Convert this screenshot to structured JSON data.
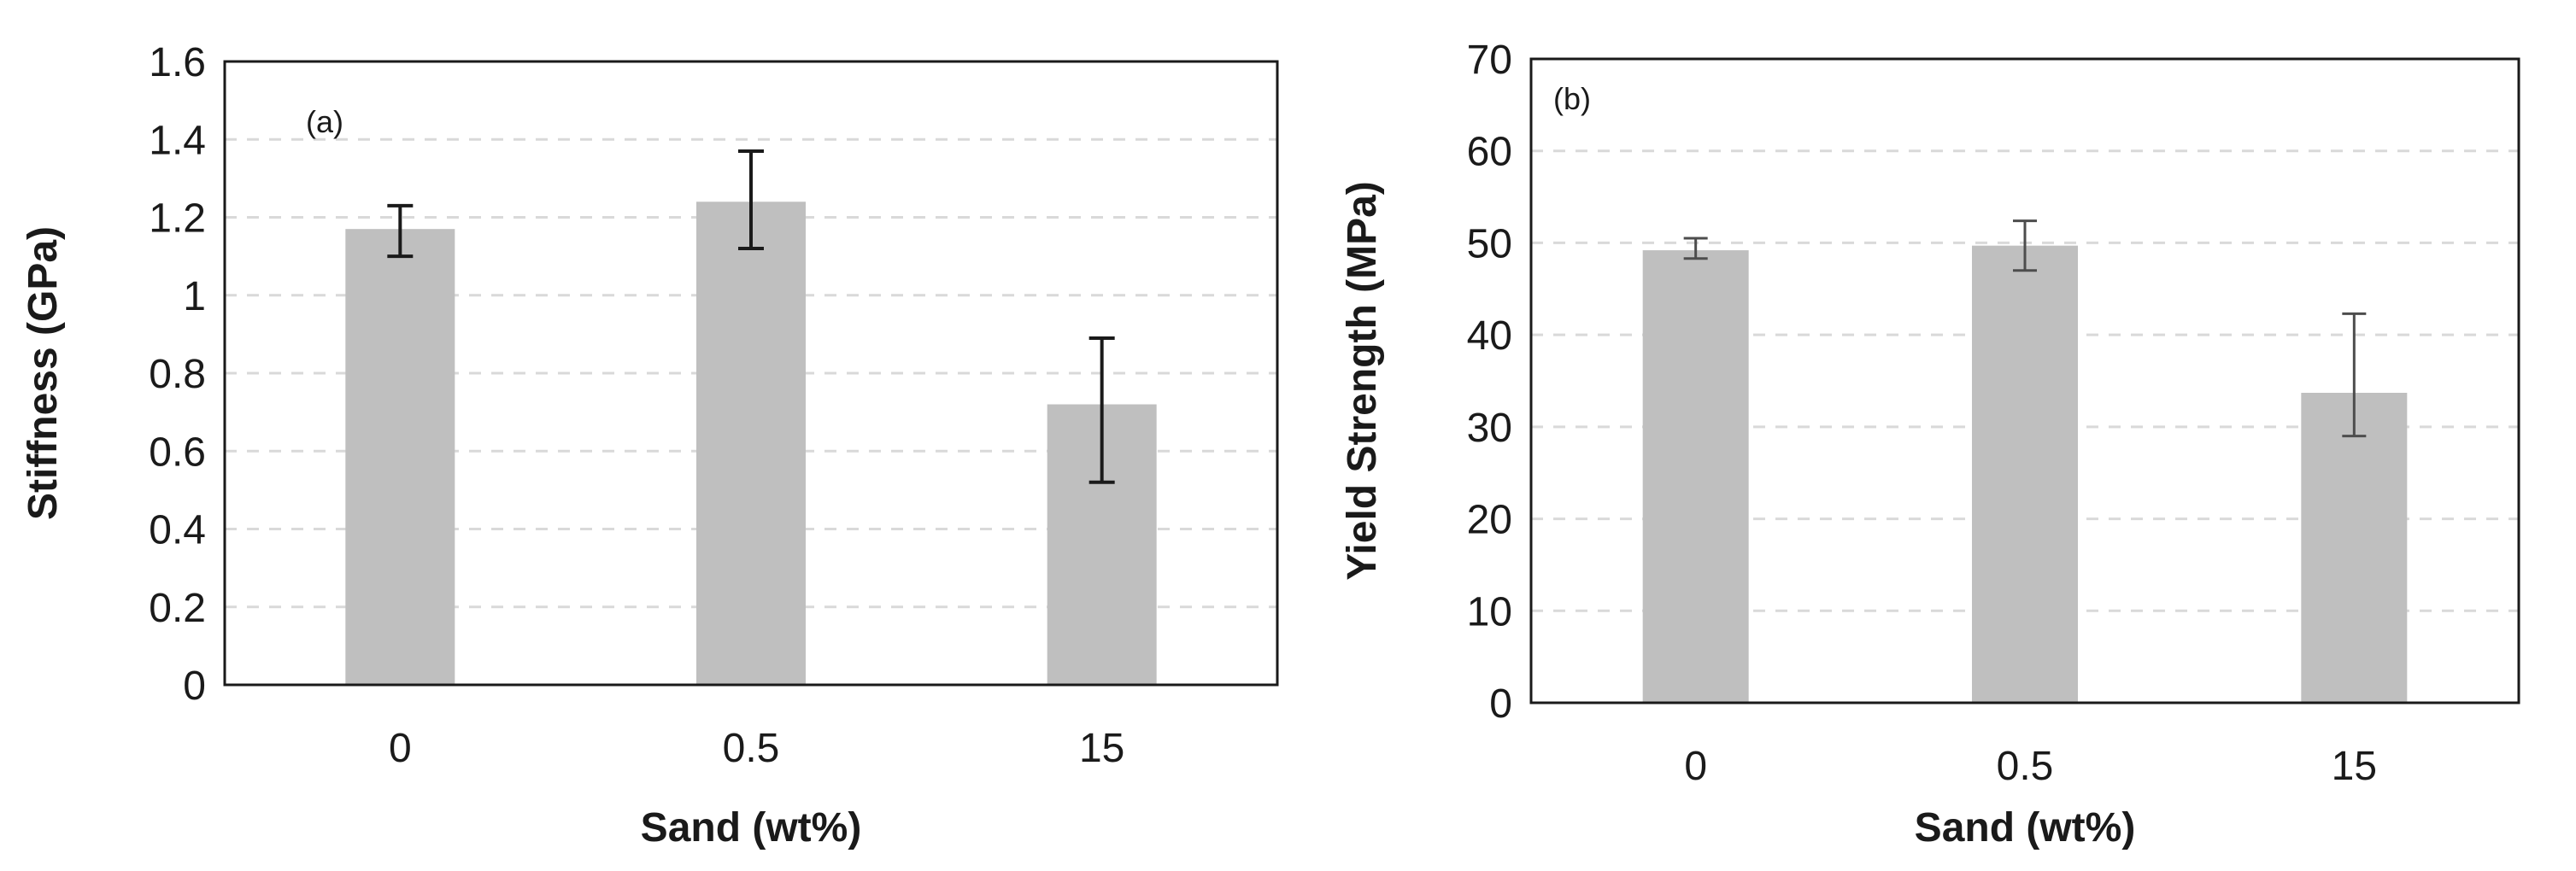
{
  "chart_data": [
    {
      "type": "bar",
      "panel_label": "(a)",
      "title": "",
      "xlabel": "Sand (wt%)",
      "ylabel": "Stiffness (GPa)",
      "categories": [
        "0",
        "0.5",
        "15"
      ],
      "values": [
        1.17,
        1.24,
        0.72
      ],
      "error_low": [
        1.1,
        1.12,
        0.52
      ],
      "error_high": [
        1.23,
        1.37,
        0.89
      ],
      "ylim": [
        0,
        1.6
      ],
      "yticks": [
        "0",
        "0.2",
        "0.4",
        "0.6",
        "0.8",
        "1",
        "1.2",
        "1.4",
        "1.6"
      ],
      "grid": true,
      "legend": "none",
      "bar_color": "#bfbfbf",
      "grid_color": "#d9d9d9",
      "error_color": "#1a1a1a"
    },
    {
      "type": "bar",
      "panel_label": "(b)",
      "title": "",
      "xlabel": "Sand (wt%)",
      "ylabel": "Yield Strength (MPa)",
      "categories": [
        "0",
        "0.5",
        "15"
      ],
      "values": [
        49.2,
        49.7,
        33.7
      ],
      "error_low": [
        48.3,
        47.0,
        29.0
      ],
      "error_high": [
        50.5,
        52.4,
        42.3
      ],
      "ylim": [
        0,
        70
      ],
      "yticks": [
        "0",
        "10",
        "20",
        "30",
        "40",
        "50",
        "60",
        "70"
      ],
      "grid": true,
      "legend": "none",
      "bar_color": "#bfbfbf",
      "grid_color": "#d9d9d9",
      "error_color": "#4d4d4d"
    }
  ]
}
